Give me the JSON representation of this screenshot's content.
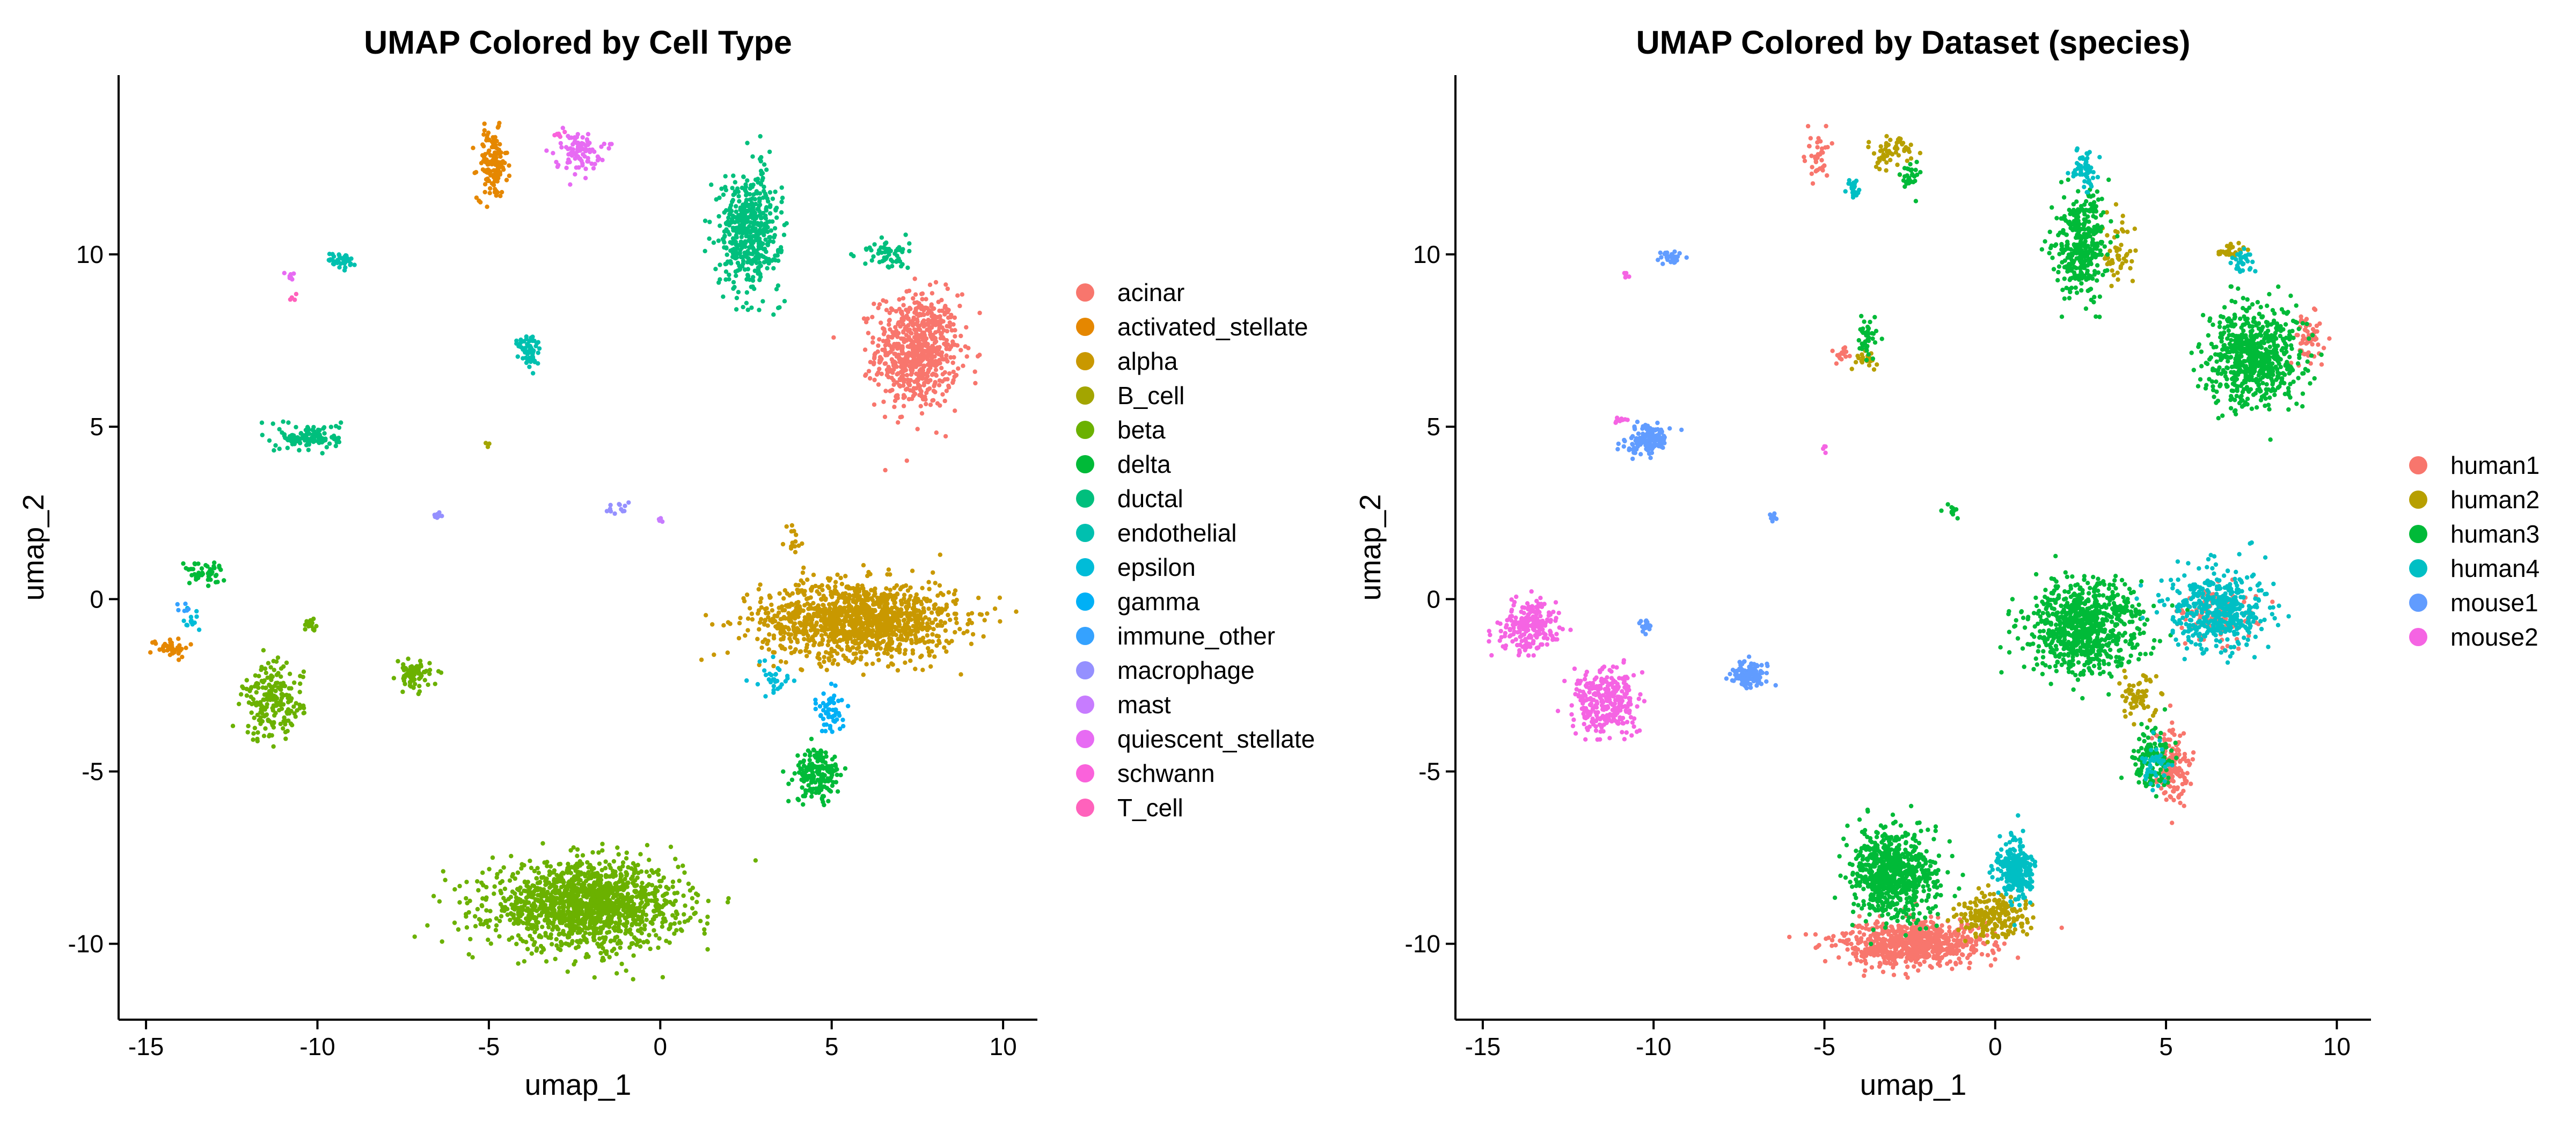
{
  "chart_data": [
    {
      "type": "scatter",
      "title": "UMAP Colored by Cell Type",
      "xlabel": "umap_1",
      "ylabel": "umap_2",
      "xlim": [
        -15.8,
        11.0
      ],
      "ylim": [
        -12.2,
        15.2
      ],
      "xticks": [
        -15,
        -10,
        -5,
        0,
        5,
        10
      ],
      "yticks": [
        -10,
        -5,
        0,
        5,
        10
      ],
      "xtick_labels": [
        "-15",
        "-10",
        "-5",
        "0",
        "5",
        "10"
      ],
      "ytick_labels": [
        "-10",
        "-5",
        "0",
        "5",
        "10"
      ],
      "grid": false,
      "legend": "right",
      "series": [
        {
          "name": "acinar",
          "color": "#F8766D",
          "blobs": [
            [
              7.5,
              7.2,
              1.1,
              1.5,
              700
            ]
          ]
        },
        {
          "name": "activated_stellate",
          "color": "#E58700",
          "blobs": [
            [
              -4.9,
              12.6,
              0.4,
              0.9,
              140
            ],
            [
              -14.3,
              -1.4,
              0.5,
              0.25,
              40
            ]
          ]
        },
        {
          "name": "alpha",
          "color": "#C99800",
          "blobs": [
            [
              5.8,
              -0.6,
              2.6,
              1.0,
              1300
            ],
            [
              3.9,
              1.7,
              0.25,
              0.5,
              15
            ]
          ]
        },
        {
          "name": "B_cell",
          "color": "#A3A500",
          "blobs": [
            [
              -5.0,
              4.5,
              0.1,
              0.1,
              3
            ]
          ]
        },
        {
          "name": "beta",
          "color": "#6BB100",
          "blobs": [
            [
              -2.2,
              -8.9,
              2.5,
              1.1,
              1500
            ],
            [
              -11.3,
              -3.0,
              0.8,
              1.0,
              200
            ],
            [
              -7.2,
              -2.2,
              0.45,
              0.35,
              80
            ],
            [
              -10.2,
              -0.8,
              0.2,
              0.2,
              15
            ]
          ]
        },
        {
          "name": "delta",
          "color": "#00BA38",
          "blobs": [
            [
              4.6,
              -5.1,
              0.6,
              0.7,
              180
            ],
            [
              -13.3,
              0.8,
              0.55,
              0.3,
              50
            ]
          ]
        },
        {
          "name": "ductal",
          "color": "#00BF7D",
          "blobs": [
            [
              2.6,
              10.7,
              0.8,
              1.5,
              500
            ],
            [
              6.6,
              10.0,
              0.6,
              0.4,
              60
            ],
            [
              -10.2,
              4.7,
              0.8,
              0.35,
              130
            ]
          ]
        },
        {
          "name": "endothelial",
          "color": "#00C0AF",
          "blobs": [
            [
              -3.8,
              7.2,
              0.3,
              0.5,
              60
            ],
            [
              -9.3,
              9.8,
              0.35,
              0.25,
              40
            ]
          ]
        },
        {
          "name": "epsilon",
          "color": "#00BCD8",
          "blobs": [
            [
              3.3,
              -2.3,
              0.5,
              0.5,
              30
            ],
            [
              -13.7,
              -0.6,
              0.25,
              0.35,
              15
            ]
          ]
        },
        {
          "name": "gamma",
          "color": "#00B0F6",
          "blobs": [
            [
              5.0,
              -3.2,
              0.35,
              0.6,
              60
            ]
          ]
        },
        {
          "name": "immune_other",
          "color": "#35A2FF",
          "blobs": [
            [
              -13.9,
              -0.3,
              0.15,
              0.2,
              6
            ]
          ]
        },
        {
          "name": "macrophage",
          "color": "#9590FF",
          "blobs": [
            [
              -6.5,
              2.4,
              0.1,
              0.1,
              8
            ],
            [
              -1.3,
              2.6,
              0.25,
              0.2,
              12
            ]
          ]
        },
        {
          "name": "mast",
          "color": "#C77CFF",
          "blobs": [
            [
              0.0,
              2.3,
              0.1,
              0.1,
              4
            ]
          ]
        },
        {
          "name": "quiescent_stellate",
          "color": "#E76BF3",
          "blobs": [
            [
              -2.4,
              13.0,
              0.6,
              0.5,
              90
            ],
            [
              -10.8,
              9.4,
              0.15,
              0.1,
              8
            ]
          ]
        },
        {
          "name": "schwann",
          "color": "#FA62DB",
          "blobs": [
            [
              -3.0,
              13.5,
              0.2,
              0.1,
              8
            ]
          ]
        },
        {
          "name": "T_cell",
          "color": "#FF62BC",
          "blobs": [
            [
              -10.7,
              8.8,
              0.1,
              0.15,
              4
            ]
          ]
        }
      ]
    },
    {
      "type": "scatter",
      "title": "UMAP Colored by Dataset (species)",
      "xlabel": "umap_1",
      "ylabel": "umap_2",
      "xlim": [
        -15.8,
        11.0
      ],
      "ylim": [
        -12.2,
        15.2
      ],
      "xticks": [
        -15,
        -10,
        -5,
        0,
        5,
        10
      ],
      "yticks": [
        -10,
        -5,
        0,
        5,
        10
      ],
      "xtick_labels": [
        "-15",
        "-10",
        "-5",
        "0",
        "5",
        "10"
      ],
      "ytick_labels": [
        "-10",
        "-5",
        "0",
        "5",
        "10"
      ],
      "grid": false,
      "legend": "right",
      "series": [
        {
          "name": "human1",
          "color": "#F8766D",
          "blobs": [
            [
              -2.5,
              -10.0,
              2.0,
              0.6,
              700
            ],
            [
              5.2,
              -4.8,
              0.4,
              1.0,
              150
            ],
            [
              9.2,
              7.5,
              0.4,
              0.8,
              60
            ],
            [
              -5.2,
              12.8,
              0.3,
              0.6,
              40
            ],
            [
              -4.5,
              7.1,
              0.2,
              0.2,
              15
            ],
            [
              6.5,
              -0.5,
              1.0,
              0.8,
              120
            ]
          ]
        },
        {
          "name": "human2",
          "color": "#B79F00",
          "blobs": [
            [
              -3.0,
              13.0,
              0.5,
              0.4,
              60
            ],
            [
              -3.8,
              6.9,
              0.3,
              0.2,
              25
            ],
            [
              6.9,
              10.1,
              0.4,
              0.2,
              30
            ],
            [
              3.6,
              10.0,
              0.5,
              0.8,
              50
            ],
            [
              0.0,
              -9.2,
              1.0,
              0.6,
              200
            ],
            [
              4.2,
              -2.8,
              0.6,
              0.6,
              60
            ]
          ]
        },
        {
          "name": "human3",
          "color": "#00BA38",
          "blobs": [
            [
              2.6,
              -0.8,
              1.5,
              1.2,
              800
            ],
            [
              7.6,
              7.0,
              1.2,
              1.3,
              700
            ],
            [
              2.5,
              10.2,
              0.7,
              1.4,
              350
            ],
            [
              -3.0,
              -8.0,
              1.1,
              1.2,
              700
            ],
            [
              4.6,
              -4.6,
              0.5,
              0.8,
              140
            ],
            [
              -2.5,
              12.2,
              0.2,
              0.5,
              30
            ],
            [
              -3.8,
              7.6,
              0.3,
              0.6,
              40
            ],
            [
              -1.3,
              2.6,
              0.2,
              0.2,
              10
            ]
          ]
        },
        {
          "name": "human4",
          "color": "#00BFC4",
          "blobs": [
            [
              6.5,
              -0.3,
              1.3,
              1.0,
              450
            ],
            [
              0.6,
              -7.9,
              0.5,
              0.8,
              250
            ],
            [
              2.6,
              12.5,
              0.3,
              0.5,
              60
            ],
            [
              7.2,
              9.8,
              0.3,
              0.3,
              30
            ],
            [
              4.7,
              -4.8,
              0.4,
              0.6,
              40
            ],
            [
              -4.2,
              12.0,
              0.2,
              0.4,
              20
            ]
          ]
        },
        {
          "name": "mouse1",
          "color": "#619CFF",
          "blobs": [
            [
              -10.2,
              4.6,
              0.6,
              0.4,
              150
            ],
            [
              -7.2,
              -2.2,
              0.45,
              0.35,
              110
            ],
            [
              -9.5,
              9.9,
              0.3,
              0.2,
              30
            ],
            [
              -6.5,
              2.4,
              0.1,
              0.1,
              8
            ],
            [
              -10.2,
              -0.8,
              0.2,
              0.2,
              20
            ]
          ]
        },
        {
          "name": "mouse2",
          "color": "#F564E3",
          "blobs": [
            [
              -11.4,
              -3.0,
              0.8,
              0.9,
              300
            ],
            [
              -13.7,
              -0.8,
              0.8,
              0.7,
              220
            ],
            [
              -5.0,
              4.4,
              0.1,
              0.1,
              4
            ],
            [
              -10.8,
              9.4,
              0.1,
              0.1,
              5
            ],
            [
              -11.0,
              5.2,
              0.2,
              0.1,
              10
            ]
          ]
        }
      ]
    }
  ]
}
